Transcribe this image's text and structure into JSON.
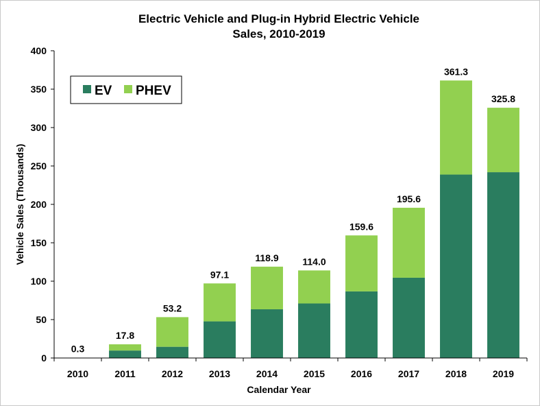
{
  "chart_data": {
    "type": "bar",
    "stacked": true,
    "title_lines": [
      "Electric Vehicle and Plug-in Hybrid Electric Vehicle",
      "Sales, 2010-2019"
    ],
    "xlabel": "Calendar Year",
    "ylabel": "Vehicle Sales (Thousands)",
    "ylim": [
      0,
      400
    ],
    "yticks": [
      0,
      50,
      100,
      150,
      200,
      250,
      300,
      350,
      400
    ],
    "categories": [
      "2010",
      "2011",
      "2012",
      "2013",
      "2014",
      "2015",
      "2016",
      "2017",
      "2018",
      "2019"
    ],
    "series": [
      {
        "name": "EV",
        "color": "#2a7d5f",
        "values": [
          0.0,
          9.7,
          14.6,
          47.7,
          63.4,
          71.0,
          86.7,
          104.5,
          238.8,
          241.9
        ]
      },
      {
        "name": "PHEV",
        "color": "#92d050",
        "values": [
          0.3,
          8.1,
          38.6,
          49.4,
          55.5,
          43.0,
          72.9,
          91.1,
          122.5,
          83.9
        ]
      }
    ],
    "totals_labels": [
      "0.3",
      "17.8",
      "53.2",
      "97.1",
      "118.9",
      "114.0",
      "159.6",
      "195.6",
      "361.3",
      "325.8"
    ],
    "legend_position": "top-left"
  }
}
